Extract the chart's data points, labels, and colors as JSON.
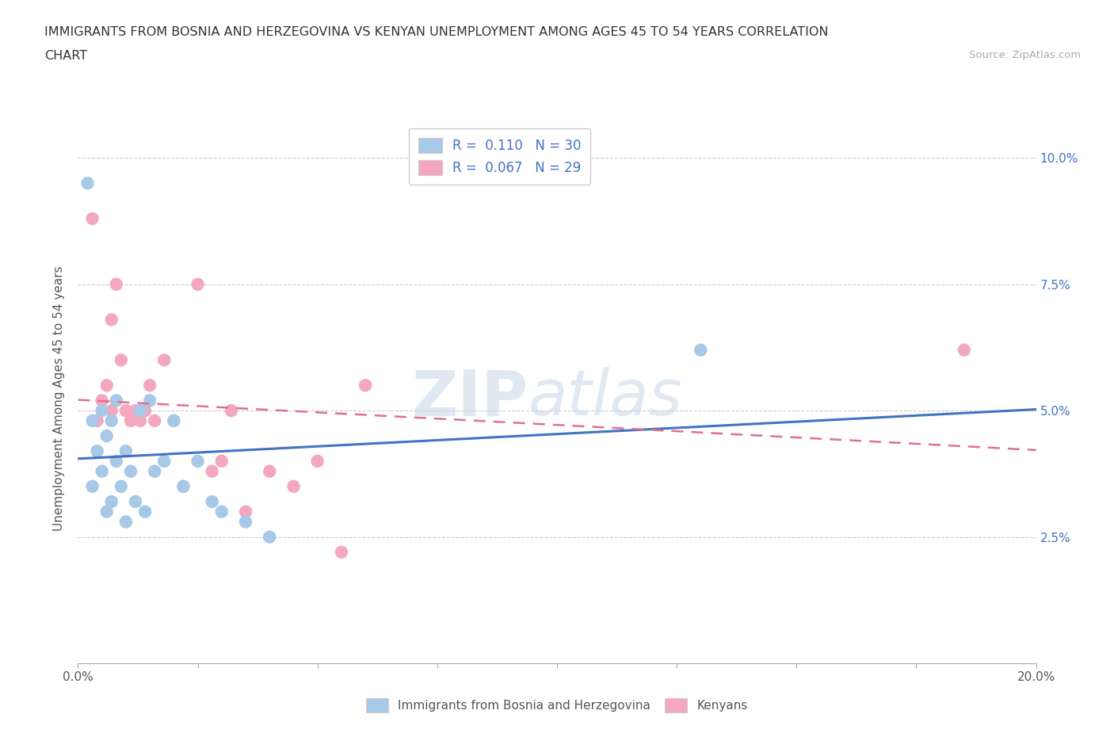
{
  "title_line1": "IMMIGRANTS FROM BOSNIA AND HERZEGOVINA VS KENYAN UNEMPLOYMENT AMONG AGES 45 TO 54 YEARS CORRELATION",
  "title_line2": "CHART",
  "source_text": "Source: ZipAtlas.com",
  "ylabel": "Unemployment Among Ages 45 to 54 years",
  "xlim": [
    0.0,
    0.2
  ],
  "ylim": [
    0.0,
    0.105
  ],
  "yticks": [
    0.0,
    0.025,
    0.05,
    0.075,
    0.1
  ],
  "ytick_labels": [
    "",
    "2.5%",
    "5.0%",
    "7.5%",
    "10.0%"
  ],
  "xticks": [
    0.0,
    0.025,
    0.05,
    0.075,
    0.1,
    0.125,
    0.15,
    0.175,
    0.2
  ],
  "xtick_labels": [
    "0.0%",
    "",
    "",
    "",
    "",
    "",
    "",
    "",
    "20.0%"
  ],
  "r_bosnia": 0.11,
  "n_bosnia": 30,
  "r_kenya": 0.067,
  "n_kenya": 29,
  "color_bosnia": "#a8c8e8",
  "color_kenya": "#f4a8c0",
  "line_color_bosnia": "#4472c4",
  "line_color_kenya": "#e07090",
  "watermark_zip": "ZIP",
  "watermark_atlas": "atlas",
  "grid_color": "#cccccc",
  "bosnia_x": [
    0.002,
    0.003,
    0.003,
    0.004,
    0.005,
    0.005,
    0.006,
    0.006,
    0.007,
    0.007,
    0.008,
    0.008,
    0.009,
    0.01,
    0.01,
    0.011,
    0.012,
    0.013,
    0.014,
    0.015,
    0.016,
    0.018,
    0.02,
    0.022,
    0.025,
    0.028,
    0.03,
    0.035,
    0.04,
    0.13
  ],
  "bosnia_y": [
    0.095,
    0.048,
    0.035,
    0.042,
    0.05,
    0.038,
    0.045,
    0.03,
    0.048,
    0.032,
    0.052,
    0.04,
    0.035,
    0.042,
    0.028,
    0.038,
    0.032,
    0.05,
    0.03,
    0.052,
    0.038,
    0.04,
    0.048,
    0.035,
    0.04,
    0.032,
    0.03,
    0.028,
    0.025,
    0.062
  ],
  "kenya_x": [
    0.003,
    0.004,
    0.005,
    0.006,
    0.007,
    0.007,
    0.008,
    0.009,
    0.01,
    0.011,
    0.012,
    0.013,
    0.014,
    0.015,
    0.016,
    0.018,
    0.02,
    0.022,
    0.025,
    0.028,
    0.03,
    0.032,
    0.035,
    0.04,
    0.045,
    0.05,
    0.055,
    0.06,
    0.185
  ],
  "kenya_y": [
    0.088,
    0.048,
    0.052,
    0.055,
    0.068,
    0.05,
    0.075,
    0.06,
    0.05,
    0.048,
    0.05,
    0.048,
    0.05,
    0.055,
    0.048,
    0.06,
    0.048,
    0.035,
    0.075,
    0.038,
    0.04,
    0.05,
    0.03,
    0.038,
    0.035,
    0.04,
    0.022,
    0.055,
    0.062
  ]
}
